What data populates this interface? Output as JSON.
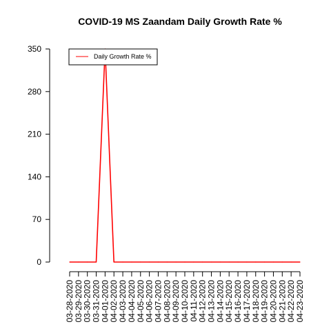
{
  "chart_data": {
    "type": "line",
    "title": "COVID-19 MS Zaandam Daily Growth Rate %",
    "xlabel": "",
    "ylabel": "",
    "ylim": [
      0,
      350
    ],
    "yticks": [
      0,
      70,
      140,
      210,
      280,
      350
    ],
    "x": [
      "03-28-2020",
      "03-29-2020",
      "03-30-2020",
      "03-31-2020",
      "04-01-2020",
      "04-02-2020",
      "04-03-2020",
      "04-04-2020",
      "04-05-2020",
      "04-06-2020",
      "04-07-2020",
      "04-08-2020",
      "04-09-2020",
      "04-10-2020",
      "04-11-2020",
      "04-12-2020",
      "04-13-2020",
      "04-14-2020",
      "04-15-2020",
      "04-16-2020",
      "04-17-2020",
      "04-18-2020",
      "04-19-2020",
      "04-20-2020",
      "04-21-2020",
      "04-22-2020",
      "04-23-2020"
    ],
    "series": [
      {
        "name": "Daily Growth Rate %",
        "color": "#ff0000",
        "values": [
          0,
          0,
          0,
          0,
          350,
          0,
          0,
          0,
          0,
          0,
          0,
          0,
          0,
          0,
          0,
          0,
          0,
          0,
          0,
          0,
          0,
          0,
          0,
          0,
          0,
          0,
          0
        ]
      }
    ],
    "legend": "top-left",
    "grid": false
  }
}
